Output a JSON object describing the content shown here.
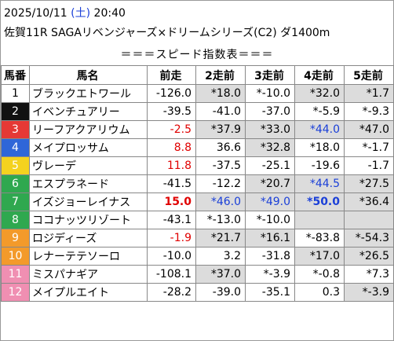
{
  "header": {
    "date": "2025/10/11",
    "weekday": "(土)",
    "time": "20:40",
    "race": "佐賀11R SAGAリベンジャーズ×ドリームシリーズ(C2) ダ1400m"
  },
  "subtitle": "＝＝＝スピード指数表＝＝＝",
  "table": {
    "columns": [
      "馬番",
      "馬名",
      "前走",
      "2走前",
      "3走前",
      "4走前",
      "5走前"
    ],
    "rows": [
      {
        "no": "1",
        "frame_color": "#ffffff",
        "no_color": "#000000",
        "name": "ブラックエトワール",
        "cells": [
          "-126.0",
          "*18.0",
          "*-10.0",
          "*32.0",
          "*1.7"
        ],
        "shaded": [
          false,
          true,
          false,
          true,
          true
        ],
        "colors": [
          "#000",
          "#000",
          "#000",
          "#000",
          "#000"
        ]
      },
      {
        "no": "2",
        "frame_color": "#111111",
        "no_color": "#ffffff",
        "name": "イベンチュアリー",
        "cells": [
          "-39.5",
          "-41.0",
          "-37.0",
          "*-5.9",
          "*-9.3"
        ],
        "shaded": [
          false,
          false,
          false,
          false,
          false
        ],
        "colors": [
          "#000",
          "#000",
          "#000",
          "#000",
          "#000"
        ]
      },
      {
        "no": "3",
        "frame_color": "#e53935",
        "no_color": "#ffffff",
        "name": "リーフアクアリウム",
        "cells": [
          "-2.5",
          "*37.9",
          "*33.0",
          "*44.0",
          "*47.0"
        ],
        "shaded": [
          false,
          true,
          true,
          true,
          true
        ],
        "colors": [
          "#e00000",
          "#000",
          "#000",
          "#1a3fd8",
          "#000"
        ]
      },
      {
        "no": "4",
        "frame_color": "#2f66d8",
        "no_color": "#ffffff",
        "name": "メイプロッサム",
        "cells": [
          "8.8",
          "36.6",
          "*32.8",
          "*18.0",
          "*-1.7"
        ],
        "shaded": [
          false,
          false,
          true,
          false,
          false
        ],
        "colors": [
          "#e00000",
          "#000",
          "#000",
          "#000",
          "#000"
        ]
      },
      {
        "no": "5",
        "frame_color": "#f4d21f",
        "no_color": "#ffffff",
        "name": "ヴレーデ",
        "cells": [
          "11.8",
          "-37.5",
          "-25.1",
          "-19.6",
          "-1.7"
        ],
        "shaded": [
          false,
          false,
          false,
          false,
          false
        ],
        "colors": [
          "#e00000",
          "#000",
          "#000",
          "#000",
          "#000"
        ]
      },
      {
        "no": "6",
        "frame_color": "#2fa84f",
        "no_color": "#ffffff",
        "name": "エスプラネード",
        "cells": [
          "-41.5",
          "-12.2",
          "*20.7",
          "*44.5",
          "*27.5"
        ],
        "shaded": [
          false,
          false,
          true,
          true,
          true
        ],
        "colors": [
          "#000",
          "#000",
          "#000",
          "#1a3fd8",
          "#000"
        ]
      },
      {
        "no": "7",
        "frame_color": "#2fa84f",
        "no_color": "#ffffff",
        "name": "イズジョーレイナス",
        "cells": [
          "15.0",
          "*46.0",
          "*49.0",
          "*50.0",
          "*36.4"
        ],
        "shaded": [
          false,
          true,
          true,
          true,
          true
        ],
        "colors": [
          "#e00000",
          "#1a3fd8",
          "#1a3fd8",
          "#1a3fd8",
          "#000"
        ],
        "bold": [
          true,
          false,
          false,
          true,
          false
        ]
      },
      {
        "no": "8",
        "frame_color": "#2fa84f",
        "no_color": "#ffffff",
        "name": "ココナッツリゾート",
        "cells": [
          "-43.1",
          "*-13.0",
          "*-10.0",
          "",
          ""
        ],
        "shaded": [
          false,
          false,
          false,
          true,
          true
        ],
        "colors": [
          "#000",
          "#000",
          "#000",
          "#000",
          "#000"
        ]
      },
      {
        "no": "9",
        "frame_color": "#f39a2a",
        "no_color": "#ffffff",
        "name": "ロジディーズ",
        "cells": [
          "-1.9",
          "*21.7",
          "*16.1",
          "*-83.8",
          "*-54.3"
        ],
        "shaded": [
          false,
          true,
          true,
          false,
          true
        ],
        "colors": [
          "#e00000",
          "#000",
          "#000",
          "#000",
          "#000"
        ]
      },
      {
        "no": "10",
        "frame_color": "#f39a2a",
        "no_color": "#ffffff",
        "name": "レナーテテソーロ",
        "cells": [
          "-10.0",
          "3.2",
          "-31.8",
          "*17.0",
          "*26.5"
        ],
        "shaded": [
          false,
          false,
          false,
          true,
          true
        ],
        "colors": [
          "#000",
          "#000",
          "#000",
          "#000",
          "#000"
        ]
      },
      {
        "no": "11",
        "frame_color": "#f08fb2",
        "no_color": "#ffffff",
        "name": "ミスパナギア",
        "cells": [
          "-108.1",
          "*37.0",
          "*-3.9",
          "*-0.8",
          "*7.3"
        ],
        "shaded": [
          false,
          true,
          false,
          false,
          false
        ],
        "colors": [
          "#000",
          "#000",
          "#000",
          "#000",
          "#000"
        ]
      },
      {
        "no": "12",
        "frame_color": "#f08fb2",
        "no_color": "#ffffff",
        "name": "メイプルエイト",
        "cells": [
          "-28.2",
          "-39.0",
          "-35.1",
          "0.3",
          "*-3.9"
        ],
        "shaded": [
          false,
          false,
          false,
          false,
          true
        ],
        "colors": [
          "#000",
          "#000",
          "#000",
          "#000",
          "#000"
        ]
      }
    ]
  }
}
